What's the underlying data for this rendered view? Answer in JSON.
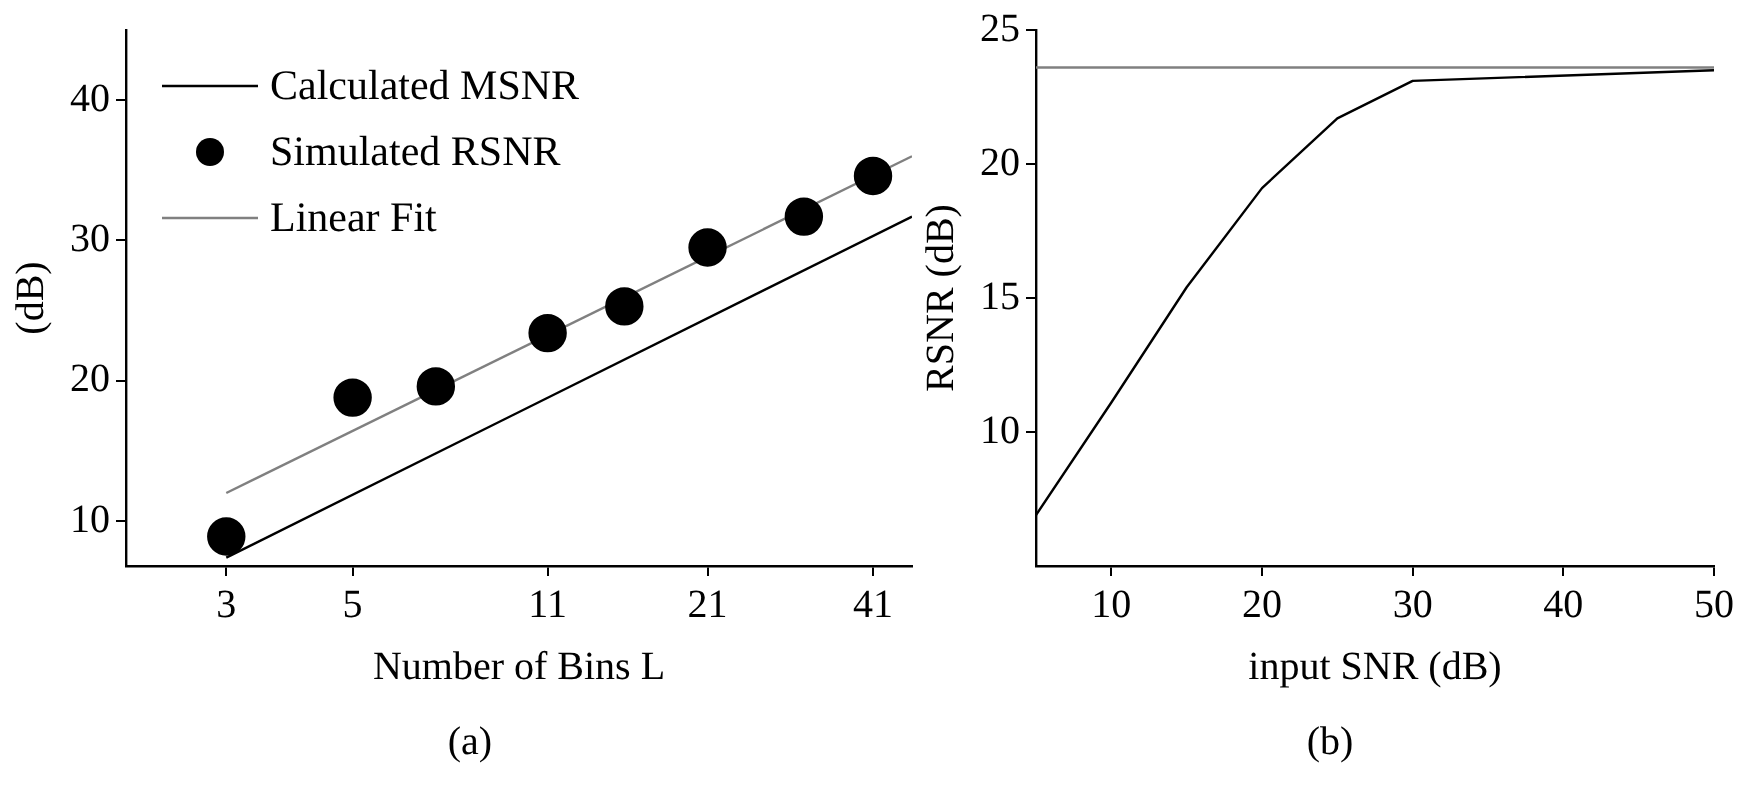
{
  "chart_data": [
    {
      "type": "line",
      "xlabel": "Number of Bins L",
      "ylabel": "(dB)",
      "log": "x",
      "xlim": [
        2,
        48
      ],
      "xticks": [
        3,
        5,
        11,
        21,
        41
      ],
      "ylim": [
        6.8,
        45
      ],
      "yticks": [
        10,
        20,
        30,
        40
      ],
      "grid": false,
      "legend": "top left",
      "marker": "none",
      "annotations": [
        "(a)"
      ],
      "series": [
        {
          "name": "Calculated MSNR",
          "color": "#000000",
          "x": [
            3,
            48
          ],
          "values": [
            7.4,
            31.7
          ]
        },
        {
          "name": "Simulated RSNR",
          "type": "scatter",
          "marker": "circle",
          "color": "#000000",
          "x": [
            3,
            5,
            7,
            11,
            15,
            21,
            31,
            41
          ],
          "values": [
            8.9,
            18.8,
            19.6,
            23.4,
            25.3,
            29.5,
            31.7,
            34.6
          ]
        },
        {
          "name": "Linear Fit",
          "color": "#808080",
          "x": [
            3,
            48
          ],
          "values": [
            12.0,
            36.0
          ]
        }
      ]
    },
    {
      "type": "line",
      "xlabel": "input SNR (dB)",
      "ylabel": "RSNR (dB)",
      "xlim": [
        5,
        50
      ],
      "xticks": [
        10,
        20,
        30,
        40,
        50
      ],
      "ylim": [
        5,
        25
      ],
      "yticks": [
        10,
        15,
        20,
        25
      ],
      "grid": false,
      "marker": "none",
      "annotations": [
        "(b)"
      ],
      "ref_lines": [
        {
          "axis": "y",
          "value": 23.6,
          "color": "#808080"
        }
      ],
      "series": [
        {
          "color": "#000000",
          "x": [
            5,
            10,
            15,
            20,
            25,
            30,
            50
          ],
          "values": [
            6.9,
            11.1,
            15.4,
            19.1,
            21.7,
            23.1,
            23.5
          ]
        }
      ]
    }
  ]
}
